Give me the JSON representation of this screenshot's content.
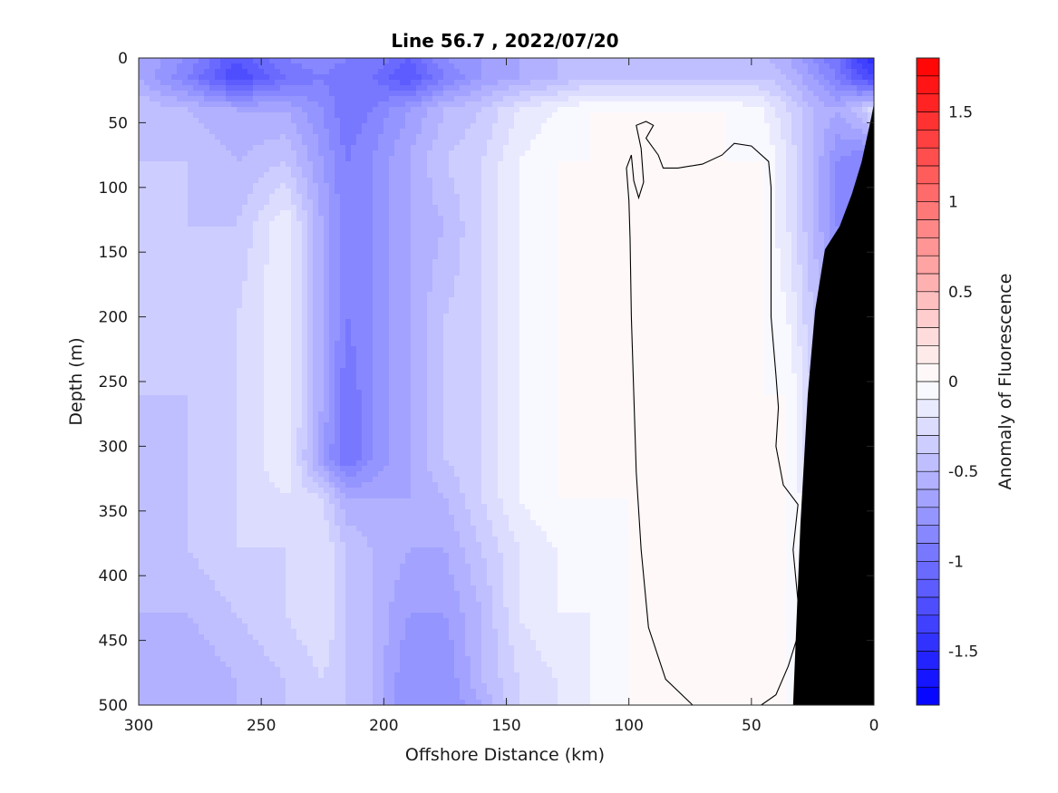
{
  "chart_data": {
    "type": "heatmap",
    "title": "Line 56.7 , 2022/07/20",
    "xlabel": "Offshore Distance (km)",
    "ylabel": "Depth (m)",
    "xlim": [
      300,
      0
    ],
    "ylim": [
      0,
      500
    ],
    "x_reversed": true,
    "y_reversed": true,
    "x_ticks": [
      "300",
      "250",
      "200",
      "150",
      "100",
      "50",
      "0"
    ],
    "y_ticks": [
      "0",
      "50",
      "100",
      "150",
      "200",
      "250",
      "300",
      "350",
      "400",
      "450",
      "500"
    ],
    "colorbar": {
      "label": "Anomaly of Fluorescence",
      "range": [
        -1.8,
        1.8
      ],
      "ticks": [
        "-1.5",
        "-1",
        "-0.5",
        "0",
        "0.5",
        "1",
        "1.5"
      ],
      "levels": 36,
      "colors": {
        "negative": "#0000ff",
        "zero": "#ffffff",
        "positive": "#ff0000"
      }
    },
    "contour_zero_line": true,
    "bathymetry_color": "#000000",
    "bathymetry": [
      {
        "x": 33,
        "depth": 500
      },
      {
        "x": 30,
        "depth": 360
      },
      {
        "x": 27,
        "depth": 260
      },
      {
        "x": 24,
        "depth": 195
      },
      {
        "x": 20,
        "depth": 148
      },
      {
        "x": 14,
        "depth": 130
      },
      {
        "x": 9,
        "depth": 105
      },
      {
        "x": 5,
        "depth": 80
      },
      {
        "x": 1,
        "depth": 45
      },
      {
        "x": 0,
        "depth": 35
      }
    ],
    "anomaly_grid": {
      "x": [
        300,
        280,
        260,
        240,
        225,
        215,
        205,
        190,
        175,
        160,
        145,
        130,
        115,
        100,
        80,
        60,
        45,
        35,
        25,
        15,
        5,
        0
      ],
      "depth": [
        0,
        15,
        40,
        80,
        130,
        200,
        260,
        310,
        340,
        380,
        430,
        480,
        500
      ],
      "values": [
        [
          -0.6,
          -0.8,
          -1.2,
          -0.9,
          -0.8,
          -0.9,
          -0.9,
          -1.1,
          -0.8,
          -0.7,
          -0.6,
          -0.5,
          -0.5,
          -0.5,
          -0.5,
          -0.5,
          -0.5,
          -0.6,
          -0.8,
          -1.0,
          -1.4,
          -1.5
        ],
        [
          -0.6,
          -0.9,
          -1.3,
          -1.0,
          -0.9,
          -1.0,
          -1.0,
          -1.2,
          -0.9,
          -0.7,
          -0.6,
          -0.5,
          -0.4,
          -0.4,
          -0.4,
          -0.4,
          -0.4,
          -0.5,
          -0.7,
          -0.9,
          -1.2,
          -1.3
        ],
        [
          -0.4,
          -0.5,
          -0.6,
          -0.6,
          -0.8,
          -1.0,
          -0.9,
          -0.7,
          -0.5,
          -0.4,
          -0.2,
          -0.1,
          0.0,
          0.0,
          0.0,
          0.0,
          -0.1,
          -0.3,
          -0.5,
          -0.6,
          -0.4,
          -0.2
        ],
        [
          -0.4,
          -0.4,
          -0.5,
          -0.4,
          -0.7,
          -0.9,
          -0.8,
          -0.6,
          -0.4,
          -0.3,
          -0.1,
          0.0,
          0.0,
          0.0,
          0.0,
          0.0,
          0.0,
          -0.2,
          -0.5,
          -0.8,
          -0.9,
          -0.9
        ],
        [
          -0.3,
          -0.4,
          -0.4,
          -0.1,
          -0.6,
          -0.9,
          -0.8,
          -0.6,
          -0.5,
          -0.3,
          -0.1,
          0.0,
          0.0,
          0.0,
          0.0,
          0.0,
          0.0,
          -0.2,
          -0.5,
          -0.8,
          -0.9,
          -0.9
        ],
        [
          -0.3,
          -0.3,
          -0.3,
          -0.1,
          -0.6,
          -0.9,
          -0.8,
          -0.6,
          -0.4,
          -0.3,
          -0.1,
          0.0,
          0.0,
          0.0,
          0.0,
          0.0,
          0.0,
          -0.1,
          -0.4,
          -0.6,
          -0.6,
          -0.6
        ],
        [
          -0.4,
          -0.4,
          -0.3,
          -0.1,
          -0.6,
          -1.0,
          -0.8,
          -0.6,
          -0.4,
          -0.3,
          -0.1,
          0.0,
          0.0,
          0.0,
          0.0,
          0.0,
          0.0,
          0.0,
          -0.3,
          -0.5,
          -0.5,
          -0.5
        ],
        [
          -0.4,
          -0.4,
          -0.3,
          -0.1,
          -0.7,
          -1.0,
          -0.8,
          -0.6,
          -0.4,
          -0.3,
          -0.1,
          0.0,
          0.0,
          0.0,
          0.0,
          0.0,
          0.0,
          0.0,
          -0.3,
          -0.5,
          -0.5,
          -0.5
        ],
        [
          -0.4,
          -0.4,
          -0.3,
          -0.2,
          -0.3,
          -0.6,
          -0.6,
          -0.6,
          -0.5,
          -0.3,
          -0.1,
          0.0,
          0.0,
          0.0,
          0.0,
          0.0,
          0.0,
          0.0,
          -0.2,
          -0.4,
          -0.4,
          -0.4
        ],
        [
          -0.4,
          -0.4,
          -0.3,
          -0.3,
          -0.2,
          -0.4,
          -0.5,
          -0.6,
          -0.6,
          -0.4,
          -0.2,
          -0.1,
          -0.1,
          0.0,
          0.0,
          0.0,
          0.0,
          0.0,
          -0.2,
          -0.4,
          -0.4,
          -0.4
        ],
        [
          -0.5,
          -0.5,
          -0.4,
          -0.3,
          -0.2,
          -0.4,
          -0.5,
          -0.7,
          -0.7,
          -0.5,
          -0.2,
          -0.1,
          -0.1,
          0.0,
          0.0,
          0.0,
          0.0,
          0.0,
          -0.2,
          -0.4,
          -0.4,
          -0.4
        ],
        [
          -0.5,
          -0.6,
          -0.5,
          -0.4,
          -0.3,
          -0.4,
          -0.5,
          -0.8,
          -0.8,
          -0.5,
          -0.3,
          -0.2,
          -0.1,
          0.0,
          0.0,
          0.0,
          0.0,
          0.0,
          -0.2,
          -0.4,
          -0.4,
          -0.4
        ],
        [
          -0.6,
          -0.6,
          -0.5,
          -0.4,
          -0.3,
          -0.4,
          -0.5,
          -0.8,
          -0.8,
          -0.6,
          -0.3,
          -0.2,
          -0.1,
          0.0,
          0.0,
          0.0,
          0.0,
          0.0,
          -0.2,
          -0.4,
          -0.4,
          -0.4
        ]
      ]
    }
  }
}
